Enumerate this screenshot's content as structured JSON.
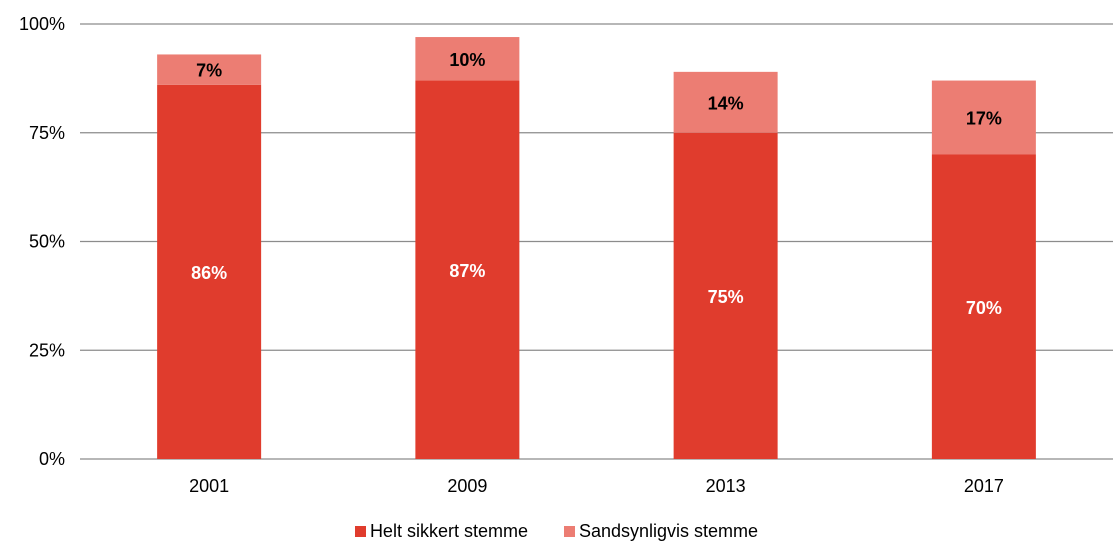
{
  "chart_data": {
    "type": "bar",
    "stacked": true,
    "categories": [
      "2001",
      "2009",
      "2013",
      "2017"
    ],
    "series": [
      {
        "name": "Helt sikkert stemme",
        "values": [
          86,
          87,
          75,
          70
        ],
        "labels": [
          "86%",
          "87%",
          "75%",
          "70%"
        ],
        "color": "#e03c2d",
        "label_color": "#ffffff"
      },
      {
        "name": "Sandsynligvis stemme",
        "values": [
          7,
          10,
          14,
          17
        ],
        "labels": [
          "7%",
          "10%",
          "14%",
          "17%"
        ],
        "color": "#ec7d73",
        "label_color": "#000000"
      }
    ],
    "ylim": [
      0,
      100
    ],
    "yticks": [
      0,
      25,
      50,
      75,
      100
    ],
    "ytick_labels": [
      "0%",
      "25%",
      "50%",
      "75%",
      "100%"
    ],
    "grid": true,
    "legend_position": "bottom"
  }
}
